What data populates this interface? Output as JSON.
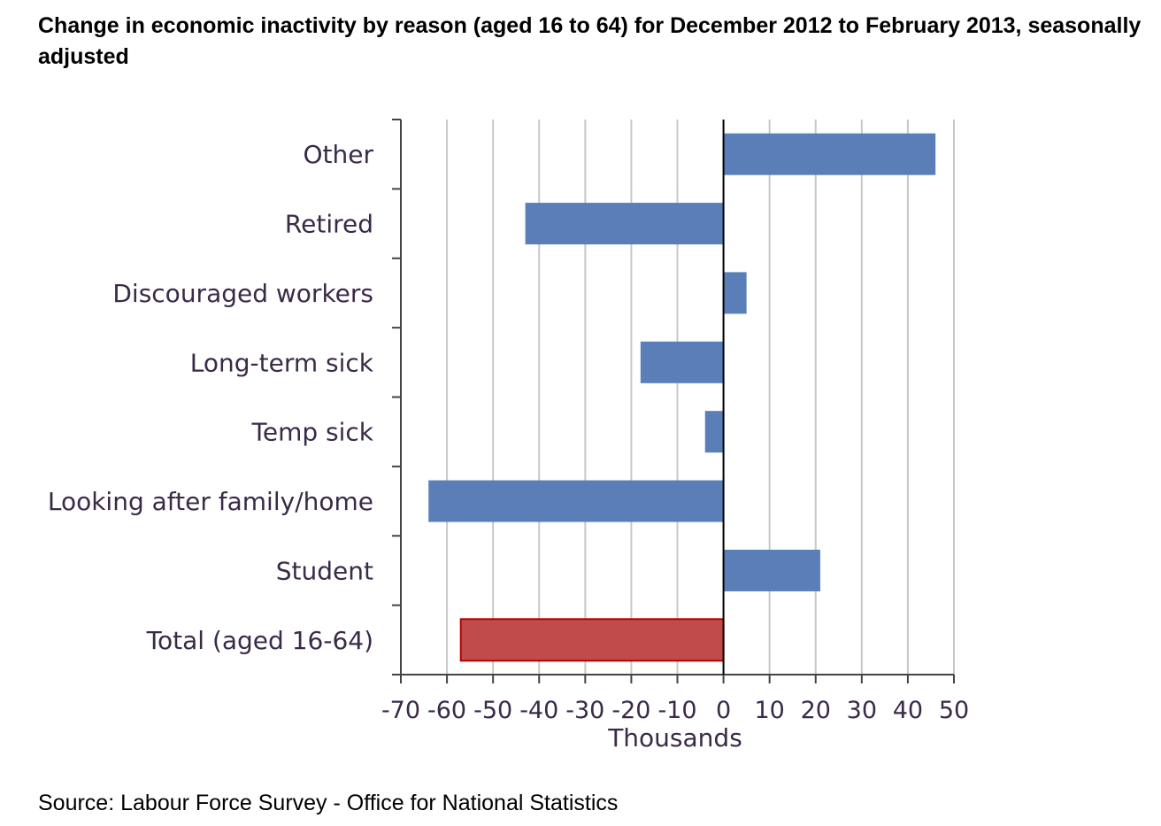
{
  "chart_data": {
    "type": "bar",
    "orientation": "horizontal",
    "title": "Change in economic inactivity by reason (aged 16 to 64) for December 2012 to February 2013, seasonally adjusted",
    "xlabel": "Thousands",
    "ylabel": "",
    "xlim": [
      -70,
      50
    ],
    "xticks": [
      -70,
      -60,
      -50,
      -40,
      -30,
      -20,
      -10,
      0,
      10,
      20,
      30,
      40,
      50
    ],
    "grid": "vertical",
    "legend": "none",
    "categories": [
      "Other",
      "Retired",
      "Discouraged workers",
      "Long-term sick",
      "Temp sick",
      "Looking after family/home",
      "Student",
      "Total (aged 16-64)"
    ],
    "values": [
      46,
      -43,
      5,
      -18,
      -4,
      -64,
      21,
      -57
    ],
    "highlight_category": "Total (aged 16-64)",
    "colors": {
      "bar": "#5a7fb8",
      "highlight": "#c14b4b",
      "highlight_border": "#b30000",
      "grid": "#c8c8c8",
      "axis": "#444444",
      "zero_line": "#000000"
    }
  },
  "source": "Source: Labour Force Survey - Office for National Statistics"
}
